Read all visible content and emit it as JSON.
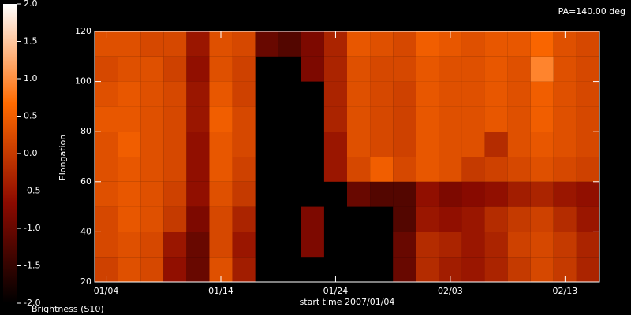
{
  "chart_data": {
    "type": "heatmap",
    "annotation": "PA=140.00 deg",
    "x_label": "start time 2007/01/04",
    "y_label": "Elongation",
    "colorbar_label": "Brightness (S10)",
    "colormap": [
      "#000000",
      "#8b0a00",
      "#ff6a00",
      "#ffffff"
    ],
    "xbins": [
      -1,
      1,
      3,
      5,
      7,
      9,
      11,
      13,
      15,
      17,
      19,
      21,
      23,
      25,
      27,
      29,
      31,
      33,
      35,
      37,
      39,
      41,
      43
    ],
    "ybins": [
      20,
      30,
      40,
      50,
      60,
      70,
      80,
      90,
      100,
      110,
      120
    ],
    "z": [
      [
        0.1,
        0.3,
        0.2,
        -0.6,
        -1.0,
        0.3,
        -0.4,
        null,
        null,
        null,
        null,
        null,
        null,
        -1.0,
        -0.2,
        -0.4,
        -0.5,
        -0.3,
        0.0,
        0.2,
        0.0,
        -0.3
      ],
      [
        0.2,
        0.3,
        0.2,
        -0.5,
        -1.0,
        0.2,
        -0.5,
        null,
        null,
        -0.8,
        null,
        null,
        null,
        -1.0,
        -0.2,
        -0.3,
        -0.5,
        -0.3,
        0.1,
        0.2,
        0.0,
        -0.3
      ],
      [
        0.2,
        0.4,
        0.3,
        0.0,
        -0.8,
        0.2,
        -0.3,
        null,
        null,
        -0.8,
        null,
        null,
        null,
        -1.2,
        -0.5,
        -0.6,
        -0.5,
        -0.2,
        0.0,
        0.1,
        -0.2,
        -0.5
      ],
      [
        0.3,
        0.4,
        0.3,
        0.1,
        -0.6,
        0.3,
        0.0,
        null,
        null,
        null,
        null,
        -1.0,
        -1.2,
        -1.2,
        -0.6,
        -0.8,
        -0.7,
        -0.6,
        -0.4,
        -0.3,
        -0.5,
        -0.6
      ],
      [
        0.3,
        0.4,
        0.3,
        0.2,
        -0.6,
        0.4,
        0.1,
        null,
        null,
        null,
        -0.5,
        0.2,
        0.5,
        0.2,
        0.4,
        0.3,
        0.0,
        0.1,
        0.2,
        0.3,
        0.2,
        0.1
      ],
      [
        0.3,
        0.5,
        0.3,
        0.2,
        -0.6,
        0.4,
        0.2,
        null,
        null,
        null,
        -0.5,
        0.3,
        0.2,
        0.1,
        0.4,
        0.3,
        0.3,
        -0.2,
        0.3,
        0.4,
        0.3,
        0.2
      ],
      [
        0.4,
        0.4,
        0.3,
        0.2,
        -0.5,
        0.5,
        0.2,
        null,
        null,
        null,
        -0.3,
        0.3,
        0.2,
        0.1,
        0.4,
        0.3,
        0.3,
        0.4,
        0.3,
        0.5,
        0.3,
        0.2
      ],
      [
        0.3,
        0.4,
        0.3,
        0.2,
        -0.5,
        0.4,
        0.1,
        null,
        null,
        null,
        -0.3,
        0.3,
        0.2,
        0.1,
        0.4,
        0.3,
        0.3,
        0.4,
        0.3,
        0.5,
        0.3,
        0.2
      ],
      [
        0.2,
        0.3,
        0.3,
        0.1,
        -0.6,
        0.3,
        0.1,
        null,
        null,
        -0.8,
        -0.3,
        0.3,
        0.2,
        0.2,
        0.4,
        0.3,
        0.3,
        0.4,
        0.3,
        0.9,
        0.3,
        0.2
      ],
      [
        0.3,
        0.3,
        0.2,
        0.2,
        -0.5,
        0.3,
        0.2,
        -1.0,
        -1.2,
        -0.8,
        -0.3,
        0.4,
        0.3,
        0.2,
        0.5,
        0.4,
        0.3,
        0.4,
        0.4,
        0.6,
        0.3,
        0.2
      ]
    ],
    "xlim": [
      -1,
      43
    ],
    "xticks": [
      {
        "value": 0,
        "label": "01/04"
      },
      {
        "value": 10,
        "label": "01/14"
      },
      {
        "value": 20,
        "label": "01/24"
      },
      {
        "value": 30,
        "label": "02/03"
      },
      {
        "value": 40,
        "label": "02/13"
      }
    ],
    "ylim": [
      20,
      120
    ],
    "yticks": [
      20,
      40,
      60,
      80,
      100,
      120
    ],
    "zlim": [
      -2,
      2
    ],
    "zticks": [
      {
        "value": -2,
        "label": "-2.0"
      },
      -1.5,
      {
        "value": -1,
        "label": "-1.0"
      },
      -0.5,
      {
        "value": 0,
        "label": "0.0"
      },
      0.5,
      {
        "value": 1,
        "label": "1.0"
      },
      1.5,
      {
        "value": 2,
        "label": "2.0"
      }
    ]
  }
}
